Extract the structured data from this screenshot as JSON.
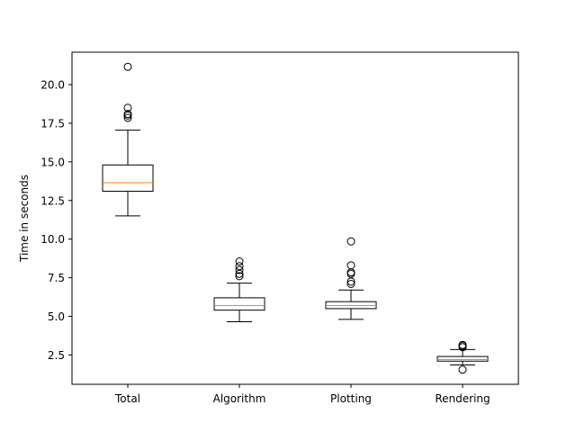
{
  "chart_data": {
    "type": "box",
    "title": "",
    "xlabel": "",
    "ylabel": "Time in seconds",
    "ylim": [
      0.6,
      22.1
    ],
    "yticks": [
      2.5,
      5.0,
      7.5,
      10.0,
      12.5,
      15.0,
      17.5,
      20.0
    ],
    "ytick_labels": [
      "2.5",
      "5.0",
      "7.5",
      "10.0",
      "12.5",
      "15.0",
      "17.5",
      "20.0"
    ],
    "grid": false,
    "colors": {
      "box": "#000000",
      "median": "#ff7f0e",
      "flier": "#000000"
    },
    "categories": [
      "Total",
      "Algorithm",
      "Plotting",
      "Rendering"
    ],
    "boxes": [
      {
        "label": "Total",
        "whisker_low": 11.5,
        "q1": 13.1,
        "median": 13.65,
        "q3": 14.8,
        "whisker_high": 17.05,
        "fliers": [
          17.85,
          18.0,
          18.1,
          18.5,
          21.15
        ]
      },
      {
        "label": "Algorithm",
        "whisker_low": 4.65,
        "q1": 5.4,
        "median": 5.7,
        "q3": 6.2,
        "whisker_high": 7.15,
        "fliers": [
          7.6,
          7.75,
          8.0,
          8.25,
          8.55
        ]
      },
      {
        "label": "Plotting",
        "whisker_low": 4.8,
        "q1": 5.5,
        "median": 5.7,
        "q3": 5.95,
        "whisker_high": 6.7,
        "fliers": [
          7.1,
          7.25,
          7.75,
          7.85,
          8.3,
          9.85
        ]
      },
      {
        "label": "Rendering",
        "whisker_low": 1.85,
        "q1": 2.1,
        "median": 2.2,
        "q3": 2.4,
        "whisker_high": 2.85,
        "fliers": [
          1.55,
          3.0,
          3.1,
          3.15
        ]
      }
    ]
  }
}
